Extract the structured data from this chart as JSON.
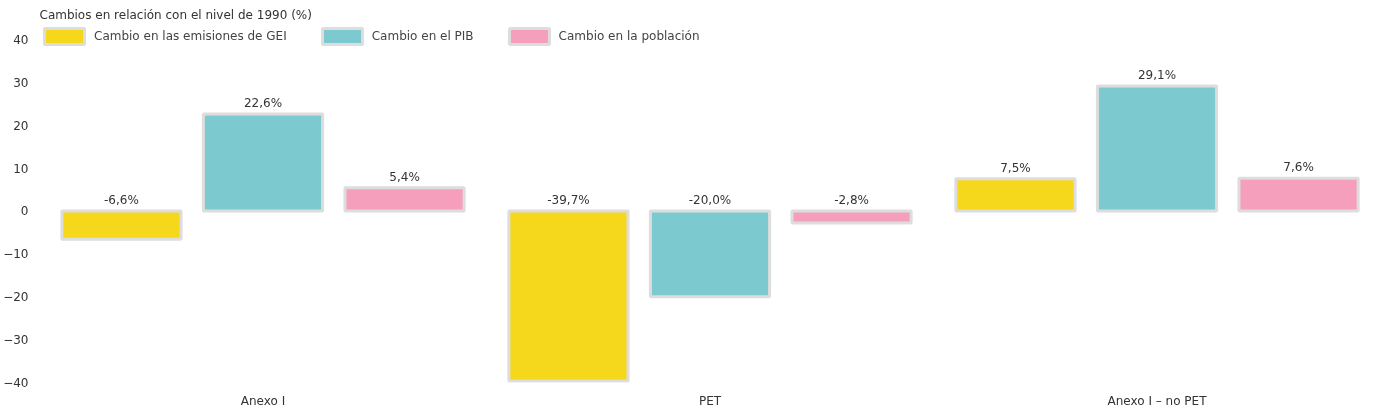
{
  "chart_data": {
    "type": "bar",
    "ylabel": "Cambios en relación con el nivel de 1990 (%)",
    "categories": [
      "Anexo I",
      "PET",
      "Anexo I – no PET"
    ],
    "series": [
      {
        "name": "Cambio en las emisiones de GEI",
        "color": "#f5d81c",
        "values": [
          -6.6,
          -39.7,
          7.5
        ],
        "value_labels": [
          "-6,6%",
          "-39,7%",
          "7,5%"
        ]
      },
      {
        "name": "Cambio en el PIB",
        "color": "#7ccacf",
        "values": [
          22.6,
          -20.0,
          29.1
        ],
        "value_labels": [
          "22,6%",
          "-20,0%",
          "29,1%"
        ]
      },
      {
        "name": "Cambio en la población",
        "color": "#f59fbd",
        "values": [
          5.4,
          -2.8,
          7.6
        ],
        "value_labels": [
          "5,4%",
          "-2,8%",
          "7,6%"
        ]
      }
    ],
    "ylim": [
      -40,
      43
    ],
    "yticks": [
      -40,
      -30,
      -20,
      -10,
      0,
      10,
      20,
      30,
      40
    ],
    "grid": false,
    "legend": "top left"
  }
}
